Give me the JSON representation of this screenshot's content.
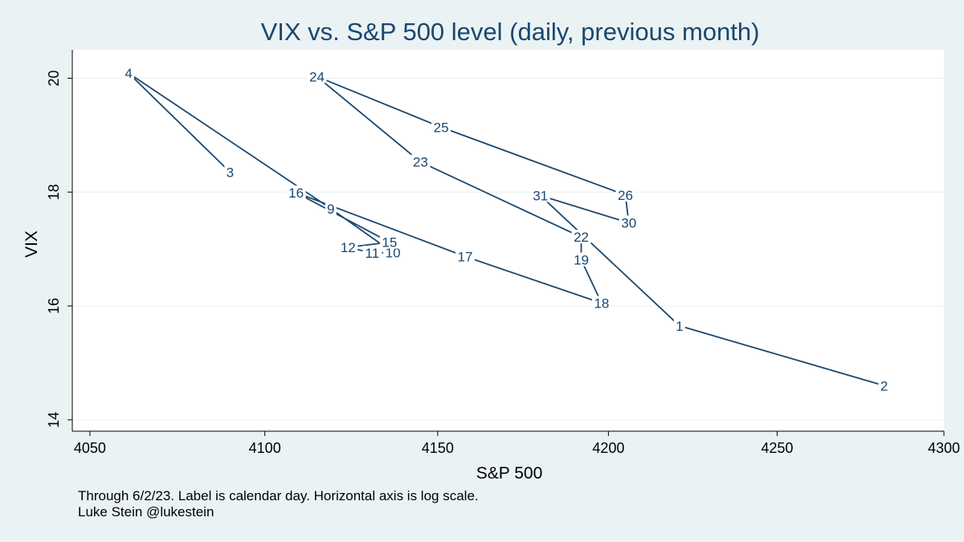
{
  "chart_data": {
    "type": "line",
    "title": "VIX vs. S&P 500 level (daily, previous month)",
    "xlabel": "S&P 500",
    "ylabel": "VIX",
    "xscale": "log",
    "xlim": [
      4045,
      4300
    ],
    "ylim": [
      13.8,
      20.5
    ],
    "xticks": [
      4050,
      4100,
      4150,
      4200,
      4250,
      4300
    ],
    "yticks": [
      14,
      16,
      18,
      20
    ],
    "grid": "horizontal",
    "legend": "none",
    "line_color": "#1a476f",
    "plot_bg": "#ffffff",
    "page_bg": "#eaf2f3",
    "grid_color": "#eaf2f3",
    "points": [
      {
        "label": "3",
        "x": 4090,
        "y": 18.35
      },
      {
        "label": "4",
        "x": 4061,
        "y": 20.09
      },
      {
        "label": "9",
        "x": 4119,
        "y": 17.71
      },
      {
        "label": "10",
        "x": 4137,
        "y": 16.94
      },
      {
        "label": "11",
        "x": 4131,
        "y": 16.93
      },
      {
        "label": "12",
        "x": 4124,
        "y": 17.03
      },
      {
        "label": "15",
        "x": 4136,
        "y": 17.12
      },
      {
        "label": "16",
        "x": 4109,
        "y": 17.99
      },
      {
        "label": "17",
        "x": 4158,
        "y": 16.87
      },
      {
        "label": "18",
        "x": 4198,
        "y": 16.05
      },
      {
        "label": "19",
        "x": 4192,
        "y": 16.81
      },
      {
        "label": "22",
        "x": 4192,
        "y": 17.21
      },
      {
        "label": "23",
        "x": 4145,
        "y": 18.53
      },
      {
        "label": "24",
        "x": 4115,
        "y": 20.03
      },
      {
        "label": "25",
        "x": 4151,
        "y": 19.14
      },
      {
        "label": "26",
        "x": 4205,
        "y": 17.95
      },
      {
        "label": "30",
        "x": 4206,
        "y": 17.46
      },
      {
        "label": "31",
        "x": 4180,
        "y": 17.94
      },
      {
        "label": "1",
        "x": 4221,
        "y": 15.65
      },
      {
        "label": "2",
        "x": 4282,
        "y": 14.6
      }
    ]
  },
  "note": "Through 6/2/23. Label is calendar day. Horizontal axis is log scale.",
  "credit": "Luke Stein @lukestein"
}
